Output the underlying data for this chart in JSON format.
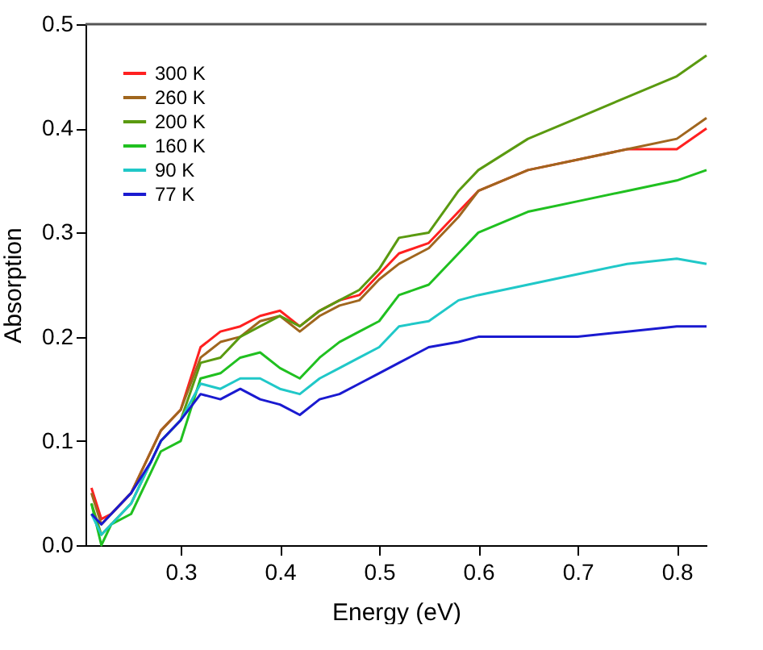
{
  "chart_data": {
    "type": "line",
    "xlabel": "Energy (eV)",
    "ylabel": "Absorption",
    "x": [
      0.21,
      0.22,
      0.23,
      0.25,
      0.27,
      0.28,
      0.3,
      0.32,
      0.34,
      0.36,
      0.38,
      0.4,
      0.42,
      0.44,
      0.46,
      0.48,
      0.5,
      0.52,
      0.55,
      0.58,
      0.6,
      0.65,
      0.7,
      0.75,
      0.8,
      0.83
    ],
    "series": [
      {
        "name": "300 K",
        "color": "#ff2020",
        "values": [
          0.055,
          0.025,
          0.03,
          0.05,
          0.09,
          0.11,
          0.13,
          0.19,
          0.205,
          0.21,
          0.22,
          0.225,
          0.21,
          0.225,
          0.235,
          0.24,
          0.26,
          0.28,
          0.29,
          0.32,
          0.34,
          0.36,
          0.37,
          0.38,
          0.38,
          0.4
        ]
      },
      {
        "name": "260 K",
        "color": "#a0661e",
        "values": [
          0.05,
          0.02,
          0.03,
          0.05,
          0.09,
          0.11,
          0.13,
          0.18,
          0.195,
          0.2,
          0.215,
          0.22,
          0.205,
          0.22,
          0.23,
          0.235,
          0.255,
          0.27,
          0.285,
          0.315,
          0.34,
          0.36,
          0.37,
          0.38,
          0.39,
          0.41
        ]
      },
      {
        "name": "200 K",
        "color": "#5a9a10",
        "values": [
          0.04,
          0.01,
          0.02,
          0.04,
          0.08,
          0.1,
          0.12,
          0.175,
          0.18,
          0.2,
          0.21,
          0.22,
          0.21,
          0.225,
          0.235,
          0.245,
          0.265,
          0.295,
          0.3,
          0.34,
          0.36,
          0.39,
          0.41,
          0.43,
          0.45,
          0.47
        ]
      },
      {
        "name": "160 K",
        "color": "#20c020",
        "values": [
          0.04,
          0.0,
          0.02,
          0.03,
          0.07,
          0.09,
          0.1,
          0.16,
          0.165,
          0.18,
          0.185,
          0.17,
          0.16,
          0.18,
          0.195,
          0.205,
          0.215,
          0.24,
          0.25,
          0.28,
          0.3,
          0.32,
          0.33,
          0.34,
          0.35,
          0.36
        ]
      },
      {
        "name": "90 K",
        "color": "#20c8c8",
        "values": [
          0.03,
          0.01,
          0.02,
          0.04,
          0.08,
          0.1,
          0.12,
          0.155,
          0.15,
          0.16,
          0.16,
          0.15,
          0.145,
          0.16,
          0.17,
          0.18,
          0.19,
          0.21,
          0.215,
          0.235,
          0.24,
          0.25,
          0.26,
          0.27,
          0.275,
          0.27
        ]
      },
      {
        "name": "77 K",
        "color": "#1a1ad0",
        "values": [
          0.03,
          0.02,
          0.03,
          0.05,
          0.08,
          0.1,
          0.12,
          0.145,
          0.14,
          0.15,
          0.14,
          0.135,
          0.125,
          0.14,
          0.145,
          0.155,
          0.165,
          0.175,
          0.19,
          0.195,
          0.2,
          0.2,
          0.2,
          0.205,
          0.21,
          0.21
        ]
      }
    ],
    "xlim": [
      0.204,
      0.83
    ],
    "xticks": [
      0.3,
      0.4,
      0.5,
      0.6,
      0.7,
      0.8
    ],
    "ylim": [
      0.0,
      0.5
    ],
    "yticks": [
      {
        "value": 0,
        "label": "0.0"
      },
      0.1,
      0.2,
      0.3,
      0.4,
      0.5
    ],
    "grid": false,
    "legend": "top left"
  }
}
